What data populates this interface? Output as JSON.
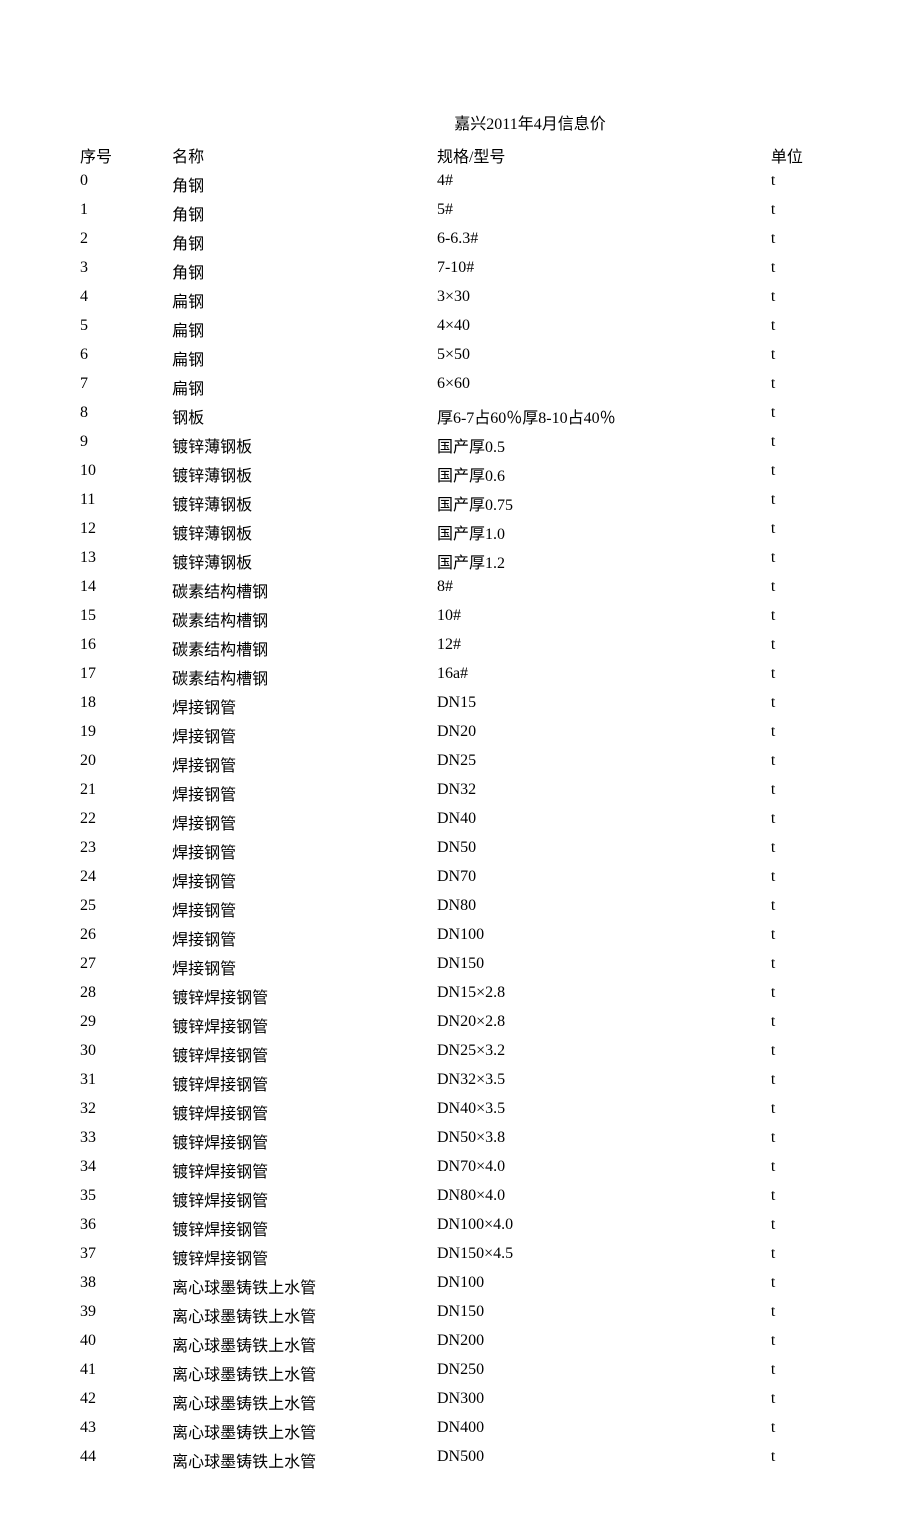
{
  "title": "嘉兴2011年4月信息价",
  "columns": [
    "序号",
    "名称",
    "规格/型号",
    "单位"
  ],
  "rows": [
    [
      "0",
      "角钢",
      "4#",
      "t"
    ],
    [
      "1",
      "角钢",
      "5#",
      "t"
    ],
    [
      "2",
      "角钢",
      "6-6.3#",
      "t"
    ],
    [
      "3",
      "角钢",
      "7-10#",
      "t"
    ],
    [
      "4",
      "扁钢",
      "3×30",
      "t"
    ],
    [
      "5",
      "扁钢",
      "4×40",
      "t"
    ],
    [
      "6",
      "扁钢",
      "5×50",
      "t"
    ],
    [
      "7",
      "扁钢",
      "6×60",
      "t"
    ],
    [
      "8",
      "钢板",
      "厚6-7占60％厚8-10占40％",
      "t"
    ],
    [
      "9",
      "镀锌薄钢板",
      "国产厚0.5",
      "t"
    ],
    [
      "10",
      "镀锌薄钢板",
      "国产厚0.6",
      "t"
    ],
    [
      "11",
      "镀锌薄钢板",
      "国产厚0.75",
      "t"
    ],
    [
      "12",
      "镀锌薄钢板",
      "国产厚1.0",
      "t"
    ],
    [
      "13",
      "镀锌薄钢板",
      "国产厚1.2",
      "t"
    ],
    [
      "14",
      "碳素结构槽钢",
      "8#",
      "t"
    ],
    [
      "15",
      "碳素结构槽钢",
      "10#",
      "t"
    ],
    [
      "16",
      "碳素结构槽钢",
      "12#",
      "t"
    ],
    [
      "17",
      "碳素结构槽钢",
      "16a#",
      "t"
    ],
    [
      "18",
      "焊接钢管",
      "DN15",
      "t"
    ],
    [
      "19",
      "焊接钢管",
      "DN20",
      "t"
    ],
    [
      "20",
      "焊接钢管",
      "DN25",
      "t"
    ],
    [
      "21",
      "焊接钢管",
      "DN32",
      "t"
    ],
    [
      "22",
      "焊接钢管",
      "DN40",
      "t"
    ],
    [
      "23",
      "焊接钢管",
      "DN50",
      "t"
    ],
    [
      "24",
      "焊接钢管",
      "DN70",
      "t"
    ],
    [
      "25",
      "焊接钢管",
      "DN80",
      "t"
    ],
    [
      "26",
      "焊接钢管",
      "DN100",
      "t"
    ],
    [
      "27",
      "焊接钢管",
      "DN150",
      "t"
    ],
    [
      "28",
      "镀锌焊接钢管",
      "DN15×2.8",
      "t"
    ],
    [
      "29",
      "镀锌焊接钢管",
      "DN20×2.8",
      "t"
    ],
    [
      "30",
      "镀锌焊接钢管",
      "DN25×3.2",
      "t"
    ],
    [
      "31",
      "镀锌焊接钢管",
      "DN32×3.5",
      "t"
    ],
    [
      "32",
      "镀锌焊接钢管",
      "DN40×3.5",
      "t"
    ],
    [
      "33",
      "镀锌焊接钢管",
      "DN50×3.8",
      "t"
    ],
    [
      "34",
      "镀锌焊接钢管",
      "DN70×4.0",
      "t"
    ],
    [
      "35",
      "镀锌焊接钢管",
      "DN80×4.0",
      "t"
    ],
    [
      "36",
      "镀锌焊接钢管",
      "DN100×4.0",
      "t"
    ],
    [
      "37",
      "镀锌焊接钢管",
      "DN150×4.5",
      "t"
    ],
    [
      "38",
      "离心球墨铸铁上水管",
      "DN100",
      "t"
    ],
    [
      "39",
      "离心球墨铸铁上水管",
      "DN150",
      "t"
    ],
    [
      "40",
      "离心球墨铸铁上水管",
      "DN200",
      "t"
    ],
    [
      "41",
      "离心球墨铸铁上水管",
      "DN250",
      "t"
    ],
    [
      "42",
      "离心球墨铸铁上水管",
      "DN300",
      "t"
    ],
    [
      "43",
      "离心球墨铸铁上水管",
      "DN400",
      "t"
    ],
    [
      "44",
      "离心球墨铸铁上水管",
      "DN500",
      "t"
    ]
  ]
}
